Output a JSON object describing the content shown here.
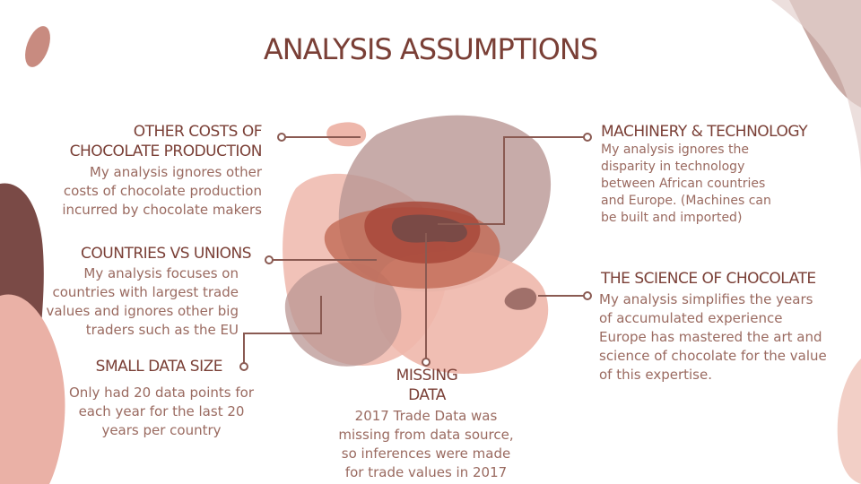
{
  "title": "ANALYSIS ASSUMPTIONS",
  "colors": {
    "heading": "#7a3f36",
    "body_text": "#9a6a60",
    "blob_pink": "#eeb7ab",
    "blob_mauve": "#b99693",
    "blob_rust": "#c26a55",
    "blob_dark": "#7a4a46",
    "connector": "#8a5a52"
  },
  "assumptions": {
    "other_costs": {
      "heading_line1": "OTHER COSTS OF",
      "heading_line2": "CHOCOLATE PRODUCTION",
      "body": [
        "My analysis ignores other",
        "costs of chocolate production",
        "incurred by chocolate makers"
      ]
    },
    "countries_vs_unions": {
      "heading": "COUNTRIES VS UNIONS",
      "body": [
        "My analysis focuses on",
        "countries with largest trade",
        "values and ignores other big",
        "traders such as the EU"
      ]
    },
    "small_data_size": {
      "heading": "SMALL DATA SIZE",
      "body": [
        "Only had 20 data points for",
        "each year for the last 20",
        "years per country"
      ]
    },
    "missing_data": {
      "heading_line1": "MISSING",
      "heading_line2": "DATA",
      "body": [
        "2017 Trade Data was",
        "missing from data source,",
        "so inferences were made",
        "for trade values in 2017"
      ]
    },
    "machinery": {
      "heading": "MACHINERY & TECHNOLOGY",
      "body": [
        "My analysis ignores the",
        "disparity in technology",
        "between African countries",
        "and Europe. (Machines can",
        "be built and imported)"
      ]
    },
    "science": {
      "heading": "THE SCIENCE OF CHOCOLATE",
      "body": [
        "My analysis simplifies the years",
        "of accumulated experience",
        "Europe has mastered the art and",
        "science of chocolate for the value",
        "of this expertise."
      ]
    }
  }
}
